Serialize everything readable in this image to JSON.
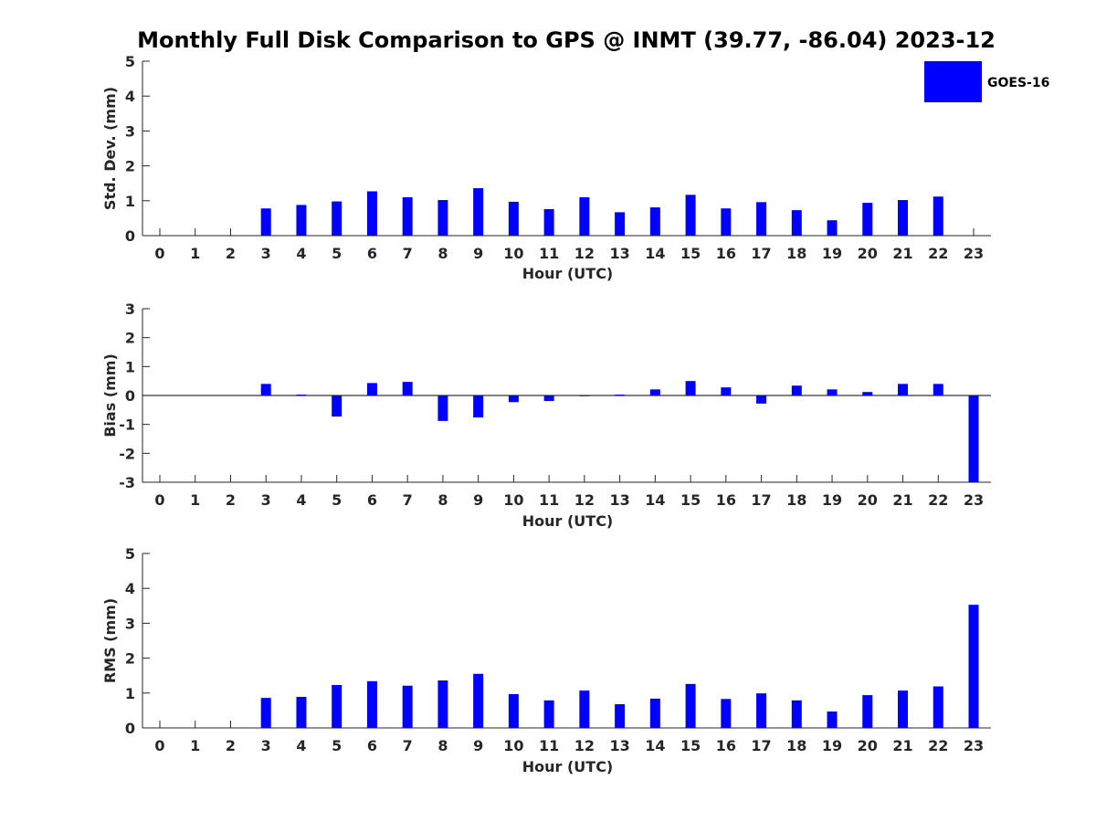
{
  "chart_data": {
    "title": "Monthly Full Disk Comparison to GPS @ INMT (39.77, -86.04) 2023-12",
    "legend": {
      "entries": [
        "GOES-16"
      ],
      "placement": "top-right"
    },
    "bar_color": "#0000ff",
    "panels": [
      {
        "type": "bar",
        "ylabel": "Std. Dev. (mm)",
        "xlabel": "Hour (UTC)",
        "ylim": [
          0,
          5
        ],
        "yticks": [
          "0",
          "1",
          "2",
          "3",
          "4",
          "5"
        ],
        "categories": [
          "0",
          "1",
          "2",
          "3",
          "4",
          "5",
          "6",
          "7",
          "8",
          "9",
          "10",
          "11",
          "12",
          "13",
          "14",
          "15",
          "16",
          "17",
          "18",
          "19",
          "20",
          "21",
          "22",
          "23"
        ],
        "values": [
          null,
          null,
          null,
          0.78,
          0.88,
          0.98,
          1.27,
          1.1,
          1.02,
          1.36,
          0.97,
          0.76,
          1.1,
          0.67,
          0.81,
          1.17,
          0.78,
          0.96,
          0.73,
          0.44,
          0.94,
          1.02,
          1.12,
          null
        ]
      },
      {
        "type": "bar",
        "ylabel": "Bias (mm)",
        "xlabel": "Hour (UTC)",
        "ylim": [
          -3,
          3
        ],
        "yticks": [
          "-3",
          "-2",
          "-1",
          "0",
          "1",
          "2",
          "3"
        ],
        "categories": [
          "0",
          "1",
          "2",
          "3",
          "4",
          "5",
          "6",
          "7",
          "8",
          "9",
          "10",
          "11",
          "12",
          "13",
          "14",
          "15",
          "16",
          "17",
          "18",
          "19",
          "20",
          "21",
          "22",
          "23"
        ],
        "values": [
          null,
          null,
          null,
          0.4,
          0.03,
          -0.73,
          0.43,
          0.47,
          -0.88,
          -0.76,
          -0.23,
          -0.19,
          0.0,
          0.03,
          0.21,
          0.5,
          0.28,
          -0.28,
          0.34,
          0.21,
          0.12,
          0.4,
          0.4,
          -3.0
        ]
      },
      {
        "type": "bar",
        "ylabel": "RMS (mm)",
        "xlabel": "Hour (UTC)",
        "ylim": [
          0,
          5
        ],
        "yticks": [
          "0",
          "1",
          "2",
          "3",
          "4",
          "5"
        ],
        "categories": [
          "0",
          "1",
          "2",
          "3",
          "4",
          "5",
          "6",
          "7",
          "8",
          "9",
          "10",
          "11",
          "12",
          "13",
          "14",
          "15",
          "16",
          "17",
          "18",
          "19",
          "20",
          "21",
          "22",
          "23"
        ],
        "values": [
          null,
          null,
          null,
          0.86,
          0.89,
          1.23,
          1.34,
          1.21,
          1.36,
          1.55,
          0.97,
          0.79,
          1.07,
          0.68,
          0.84,
          1.26,
          0.83,
          0.99,
          0.79,
          0.47,
          0.94,
          1.07,
          1.19,
          3.53
        ]
      }
    ]
  }
}
